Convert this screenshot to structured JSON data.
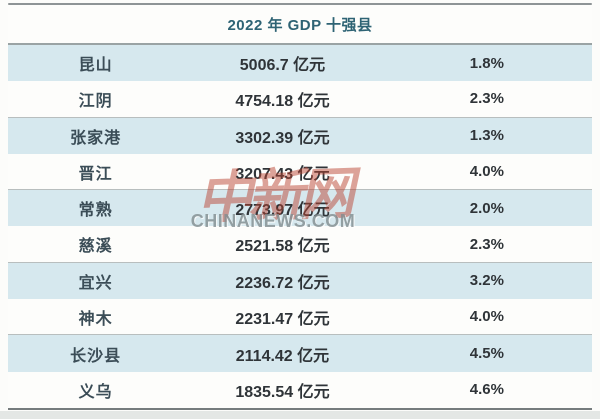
{
  "chart_data": {
    "type": "table",
    "title": "2022 年 GDP 十强县",
    "value_unit": "亿元",
    "rows": [
      {
        "name": "昆山",
        "gdp_text": "5006.7 亿元",
        "gdp_yi_yuan": 5006.7,
        "growth_text": "1.8%",
        "growth_pct": 1.8
      },
      {
        "name": "江阴",
        "gdp_text": "4754.18 亿元",
        "gdp_yi_yuan": 4754.18,
        "growth_text": "2.3%",
        "growth_pct": 2.3
      },
      {
        "name": "张家港",
        "gdp_text": "3302.39 亿元",
        "gdp_yi_yuan": 3302.39,
        "growth_text": "1.3%",
        "growth_pct": 1.3
      },
      {
        "name": "晋江",
        "gdp_text": "3207.43 亿元",
        "gdp_yi_yuan": 3207.43,
        "growth_text": "4.0%",
        "growth_pct": 4.0
      },
      {
        "name": "常熟",
        "gdp_text": "2773.97 亿元",
        "gdp_yi_yuan": 2773.97,
        "growth_text": "2.0%",
        "growth_pct": 2.0
      },
      {
        "name": "慈溪",
        "gdp_text": "2521.58 亿元",
        "gdp_yi_yuan": 2521.58,
        "growth_text": "2.3%",
        "growth_pct": 2.3
      },
      {
        "name": "宜兴",
        "gdp_text": "2236.72 亿元",
        "gdp_yi_yuan": 2236.72,
        "growth_text": "3.2%",
        "growth_pct": 3.2
      },
      {
        "name": "神木",
        "gdp_text": "2231.47 亿元",
        "gdp_yi_yuan": 2231.47,
        "growth_text": "4.0%",
        "growth_pct": 4.0
      },
      {
        "name": "长沙县",
        "gdp_text": "2114.42 亿元",
        "gdp_yi_yuan": 2114.42,
        "growth_text": "4.5%",
        "growth_pct": 4.5
      },
      {
        "name": "义乌",
        "gdp_text": "1835.54 亿元",
        "gdp_yi_yuan": 1835.54,
        "growth_text": "4.6%",
        "growth_pct": 4.6
      }
    ],
    "layout": {
      "row_striping": "alternate light-blue / white",
      "group_separators_after_rows": [
        2,
        4,
        6,
        8,
        10
      ]
    }
  },
  "watermark": {
    "cn": "中新网",
    "en": "CHINANEWS.COM"
  },
  "colors": {
    "row_blue": "#d6e8ee",
    "row_white": "#fdfdfb",
    "title_text": "#2e6374",
    "border_gray": "#8e9496",
    "watermark_red": "#b9412f",
    "watermark_gray": "#828d90"
  }
}
